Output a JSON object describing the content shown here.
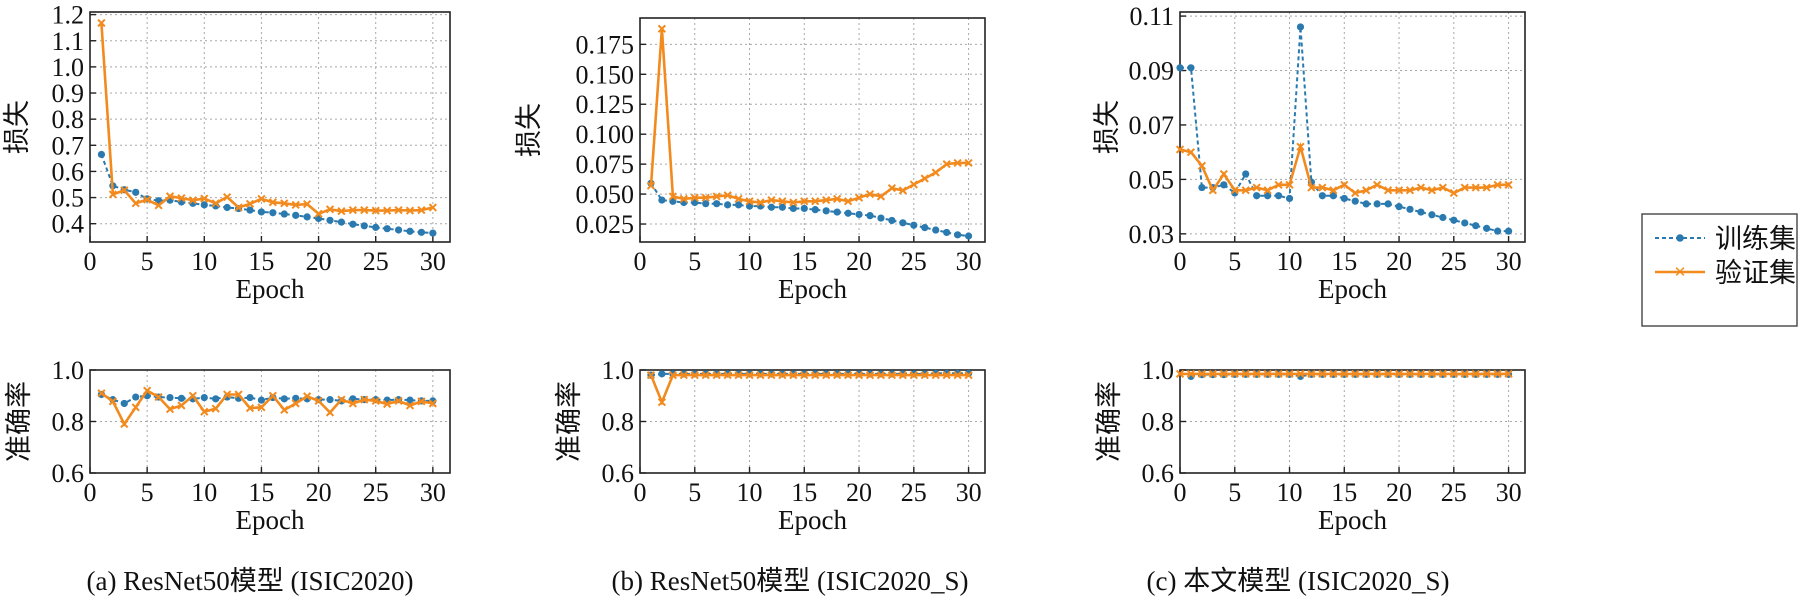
{
  "colors": {
    "train": "#2a7ab0",
    "val": "#f28a1e"
  },
  "legend": {
    "train_label": "训练集",
    "val_label": "验证集"
  },
  "captions": {
    "a": "(a) ResNet50模型 (ISIC2020)",
    "b": "(b) ResNet50模型 (ISIC2020_S)",
    "c": "(c) 本文模型 (ISIC2020_S)"
  },
  "chart_data": [
    {
      "id": "a-loss",
      "type": "line",
      "xlabel": "Epoch",
      "ylabel": "损失",
      "xlim": [
        0,
        31.5
      ],
      "ylim": [
        0.33,
        1.21
      ],
      "xticks": [
        0,
        5,
        10,
        15,
        20,
        25,
        30
      ],
      "yticks": [
        0.4,
        0.5,
        0.6,
        0.7,
        0.8,
        0.9,
        1.0,
        1.1,
        1.2
      ],
      "ytick_labels": [
        "0.4",
        "0.5",
        "0.6",
        "0.7",
        "0.8",
        "0.9",
        "1.0",
        "1.1",
        "1.2"
      ],
      "series": [
        {
          "name": "训练集",
          "x": [
            1,
            2,
            3,
            4,
            5,
            6,
            7,
            8,
            9,
            10,
            11,
            12,
            13,
            14,
            15,
            16,
            17,
            18,
            19,
            20,
            21,
            22,
            23,
            24,
            25,
            26,
            27,
            28,
            29,
            30
          ],
          "values": [
            0.665,
            0.545,
            0.53,
            0.52,
            0.495,
            0.488,
            0.49,
            0.483,
            0.478,
            0.472,
            0.468,
            0.462,
            0.458,
            0.452,
            0.445,
            0.442,
            0.437,
            0.432,
            0.426,
            0.42,
            0.413,
            0.406,
            0.398,
            0.392,
            0.386,
            0.381,
            0.376,
            0.371,
            0.367,
            0.364
          ]
        },
        {
          "name": "验证集",
          "x": [
            1,
            2,
            3,
            4,
            5,
            6,
            7,
            8,
            9,
            10,
            11,
            12,
            13,
            14,
            15,
            16,
            17,
            18,
            19,
            20,
            21,
            22,
            23,
            24,
            25,
            26,
            27,
            28,
            29,
            30
          ],
          "values": [
            1.168,
            0.512,
            0.528,
            0.478,
            0.492,
            0.47,
            0.505,
            0.498,
            0.49,
            0.496,
            0.478,
            0.502,
            0.462,
            0.476,
            0.495,
            0.482,
            0.478,
            0.472,
            0.475,
            0.438,
            0.455,
            0.448,
            0.452,
            0.452,
            0.45,
            0.45,
            0.452,
            0.45,
            0.452,
            0.462
          ]
        }
      ]
    },
    {
      "id": "b-loss",
      "type": "line",
      "xlabel": "Epoch",
      "ylabel": "损失",
      "xlim": [
        0,
        31.5
      ],
      "ylim": [
        0.01,
        0.197
      ],
      "xticks": [
        0,
        5,
        10,
        15,
        20,
        25,
        30
      ],
      "yticks": [
        0.025,
        0.05,
        0.075,
        0.1,
        0.125,
        0.15,
        0.175
      ],
      "ytick_labels": [
        "0.025",
        "0.050",
        "0.075",
        "0.100",
        "0.125",
        "0.150",
        "0.175"
      ],
      "series": [
        {
          "name": "训练集",
          "x": [
            1,
            2,
            3,
            4,
            5,
            6,
            7,
            8,
            9,
            10,
            11,
            12,
            13,
            14,
            15,
            16,
            17,
            18,
            19,
            20,
            21,
            22,
            23,
            24,
            25,
            26,
            27,
            28,
            29,
            30
          ],
          "values": [
            0.059,
            0.045,
            0.044,
            0.043,
            0.043,
            0.042,
            0.042,
            0.041,
            0.041,
            0.04,
            0.04,
            0.039,
            0.039,
            0.038,
            0.038,
            0.037,
            0.036,
            0.035,
            0.034,
            0.033,
            0.032,
            0.03,
            0.028,
            0.026,
            0.024,
            0.022,
            0.02,
            0.018,
            0.016,
            0.015
          ]
        },
        {
          "name": "验证集",
          "x": [
            1,
            2,
            3,
            4,
            5,
            6,
            7,
            8,
            9,
            10,
            11,
            12,
            13,
            14,
            15,
            16,
            17,
            18,
            19,
            20,
            21,
            22,
            23,
            24,
            25,
            26,
            27,
            28,
            29,
            30
          ],
          "values": [
            0.057,
            0.188,
            0.048,
            0.046,
            0.047,
            0.047,
            0.048,
            0.049,
            0.046,
            0.044,
            0.043,
            0.045,
            0.044,
            0.043,
            0.044,
            0.044,
            0.045,
            0.046,
            0.044,
            0.047,
            0.05,
            0.048,
            0.055,
            0.053,
            0.058,
            0.063,
            0.068,
            0.075,
            0.076,
            0.076
          ]
        }
      ]
    },
    {
      "id": "c-loss",
      "type": "line",
      "xlabel": "Epoch",
      "ylabel": "损失",
      "xlim": [
        0,
        31.5
      ],
      "ylim": [
        0.027,
        0.1115
      ],
      "xticks": [
        0,
        5,
        10,
        15,
        20,
        25,
        30
      ],
      "yticks": [
        0.03,
        0.05,
        0.07,
        0.09,
        0.11
      ],
      "ytick_labels": [
        "0.03",
        "0.05",
        "0.07",
        "0.09",
        "0.11"
      ],
      "series": [
        {
          "name": "训练集",
          "x": [
            0,
            1,
            2,
            3,
            4,
            5,
            6,
            7,
            8,
            9,
            10,
            11,
            12,
            13,
            14,
            15,
            16,
            17,
            18,
            19,
            20,
            21,
            22,
            23,
            24,
            25,
            26,
            27,
            28,
            29,
            30
          ],
          "values": [
            0.091,
            0.091,
            0.047,
            0.047,
            0.048,
            0.045,
            0.052,
            0.044,
            0.044,
            0.044,
            0.043,
            0.106,
            0.049,
            0.044,
            0.044,
            0.043,
            0.042,
            0.041,
            0.041,
            0.041,
            0.04,
            0.039,
            0.038,
            0.037,
            0.036,
            0.035,
            0.034,
            0.033,
            0.032,
            0.031,
            0.031
          ]
        },
        {
          "name": "验证集",
          "x": [
            0,
            1,
            2,
            3,
            4,
            5,
            6,
            7,
            8,
            9,
            10,
            11,
            12,
            13,
            14,
            15,
            16,
            17,
            18,
            19,
            20,
            21,
            22,
            23,
            24,
            25,
            26,
            27,
            28,
            29,
            30
          ],
          "values": [
            0.061,
            0.06,
            0.055,
            0.046,
            0.052,
            0.046,
            0.046,
            0.047,
            0.046,
            0.048,
            0.048,
            0.062,
            0.047,
            0.047,
            0.046,
            0.048,
            0.045,
            0.046,
            0.048,
            0.046,
            0.046,
            0.046,
            0.047,
            0.046,
            0.047,
            0.045,
            0.047,
            0.047,
            0.047,
            0.048,
            0.048
          ]
        }
      ]
    },
    {
      "id": "a-acc",
      "type": "line",
      "xlabel": "Epoch",
      "ylabel": "准确率",
      "xlim": [
        0,
        31.5
      ],
      "ylim": [
        0.6,
        1.0
      ],
      "xticks": [
        0,
        5,
        10,
        15,
        20,
        25,
        30
      ],
      "yticks": [
        0.6,
        0.8,
        1.0
      ],
      "ytick_labels": [
        "0.6",
        "0.8",
        "1.0"
      ],
      "series": [
        {
          "name": "训练集",
          "x": [
            1,
            2,
            3,
            4,
            5,
            6,
            7,
            8,
            9,
            10,
            11,
            12,
            13,
            14,
            15,
            16,
            17,
            18,
            19,
            20,
            21,
            22,
            23,
            24,
            25,
            26,
            27,
            28,
            29,
            30
          ],
          "values": [
            0.905,
            0.885,
            0.87,
            0.895,
            0.9,
            0.895,
            0.893,
            0.89,
            0.888,
            0.893,
            0.888,
            0.895,
            0.89,
            0.893,
            0.883,
            0.893,
            0.888,
            0.89,
            0.888,
            0.885,
            0.885,
            0.88,
            0.888,
            0.885,
            0.885,
            0.883,
            0.885,
            0.883,
            0.88,
            0.88
          ]
        },
        {
          "name": "验证集",
          "x": [
            1,
            2,
            3,
            4,
            5,
            6,
            7,
            8,
            9,
            10,
            11,
            12,
            13,
            14,
            15,
            16,
            17,
            18,
            19,
            20,
            21,
            22,
            23,
            24,
            25,
            26,
            27,
            28,
            29,
            30
          ],
          "values": [
            0.91,
            0.878,
            0.79,
            0.855,
            0.92,
            0.895,
            0.848,
            0.862,
            0.9,
            0.838,
            0.85,
            0.905,
            0.905,
            0.852,
            0.855,
            0.9,
            0.845,
            0.87,
            0.898,
            0.88,
            0.835,
            0.885,
            0.87,
            0.885,
            0.88,
            0.868,
            0.88,
            0.862,
            0.878,
            0.87
          ]
        }
      ]
    },
    {
      "id": "b-acc",
      "type": "line",
      "xlabel": "Epoch",
      "ylabel": "准确率",
      "xlim": [
        0,
        31.5
      ],
      "ylim": [
        0.6,
        1.0
      ],
      "xticks": [
        0,
        5,
        10,
        15,
        20,
        25,
        30
      ],
      "yticks": [
        0.6,
        0.8,
        1.0
      ],
      "ytick_labels": [
        "0.6",
        "0.8",
        "1.0"
      ],
      "series": [
        {
          "name": "训练集",
          "x": [
            1,
            2,
            3,
            4,
            5,
            6,
            7,
            8,
            9,
            10,
            11,
            12,
            13,
            14,
            15,
            16,
            17,
            18,
            19,
            20,
            21,
            22,
            23,
            24,
            25,
            26,
            27,
            28,
            29,
            30
          ],
          "values": [
            0.98,
            0.985,
            0.985,
            0.985,
            0.985,
            0.985,
            0.985,
            0.985,
            0.985,
            0.985,
            0.985,
            0.985,
            0.985,
            0.985,
            0.985,
            0.985,
            0.985,
            0.985,
            0.985,
            0.985,
            0.985,
            0.985,
            0.985,
            0.985,
            0.985,
            0.985,
            0.987,
            0.987,
            0.987,
            0.987
          ]
        },
        {
          "name": "验证集",
          "x": [
            1,
            2,
            3,
            4,
            5,
            6,
            7,
            8,
            9,
            10,
            11,
            12,
            13,
            14,
            15,
            16,
            17,
            18,
            19,
            20,
            21,
            22,
            23,
            24,
            25,
            26,
            27,
            28,
            29,
            30
          ],
          "values": [
            0.98,
            0.875,
            0.98,
            0.98,
            0.98,
            0.98,
            0.98,
            0.98,
            0.98,
            0.98,
            0.98,
            0.98,
            0.98,
            0.98,
            0.98,
            0.98,
            0.98,
            0.98,
            0.98,
            0.98,
            0.98,
            0.98,
            0.98,
            0.98,
            0.98,
            0.98,
            0.98,
            0.98,
            0.98,
            0.98
          ]
        }
      ]
    },
    {
      "id": "c-acc",
      "type": "line",
      "xlabel": "Epoch",
      "ylabel": "准确率",
      "xlim": [
        0,
        31.5
      ],
      "ylim": [
        0.6,
        1.0
      ],
      "xticks": [
        0,
        5,
        10,
        15,
        20,
        25,
        30
      ],
      "yticks": [
        0.6,
        0.8,
        1.0
      ],
      "ytick_labels": [
        "0.6",
        "0.8",
        "1.0"
      ],
      "series": [
        {
          "name": "训练集",
          "x": [
            1,
            2,
            3,
            4,
            5,
            6,
            7,
            8,
            9,
            10,
            11,
            12,
            13,
            14,
            15,
            16,
            17,
            18,
            19,
            20,
            21,
            22,
            23,
            24,
            25,
            26,
            27,
            28,
            29,
            30
          ],
          "values": [
            0.975,
            0.982,
            0.982,
            0.982,
            0.983,
            0.983,
            0.983,
            0.983,
            0.983,
            0.983,
            0.975,
            0.983,
            0.983,
            0.983,
            0.983,
            0.983,
            0.983,
            0.983,
            0.983,
            0.983,
            0.983,
            0.983,
            0.983,
            0.983,
            0.983,
            0.983,
            0.983,
            0.983,
            0.983,
            0.983
          ]
        },
        {
          "name": "验证集",
          "x": [
            0,
            1,
            2,
            3,
            4,
            5,
            6,
            7,
            8,
            9,
            10,
            11,
            12,
            13,
            14,
            15,
            16,
            17,
            18,
            19,
            20,
            21,
            22,
            23,
            24,
            25,
            26,
            27,
            28,
            29,
            30
          ],
          "values": [
            0.985,
            0.985,
            0.985,
            0.985,
            0.985,
            0.985,
            0.985,
            0.985,
            0.985,
            0.985,
            0.985,
            0.985,
            0.985,
            0.985,
            0.985,
            0.985,
            0.985,
            0.985,
            0.985,
            0.985,
            0.985,
            0.985,
            0.985,
            0.985,
            0.985,
            0.985,
            0.985,
            0.985,
            0.985,
            0.985,
            0.985
          ]
        }
      ]
    }
  ]
}
